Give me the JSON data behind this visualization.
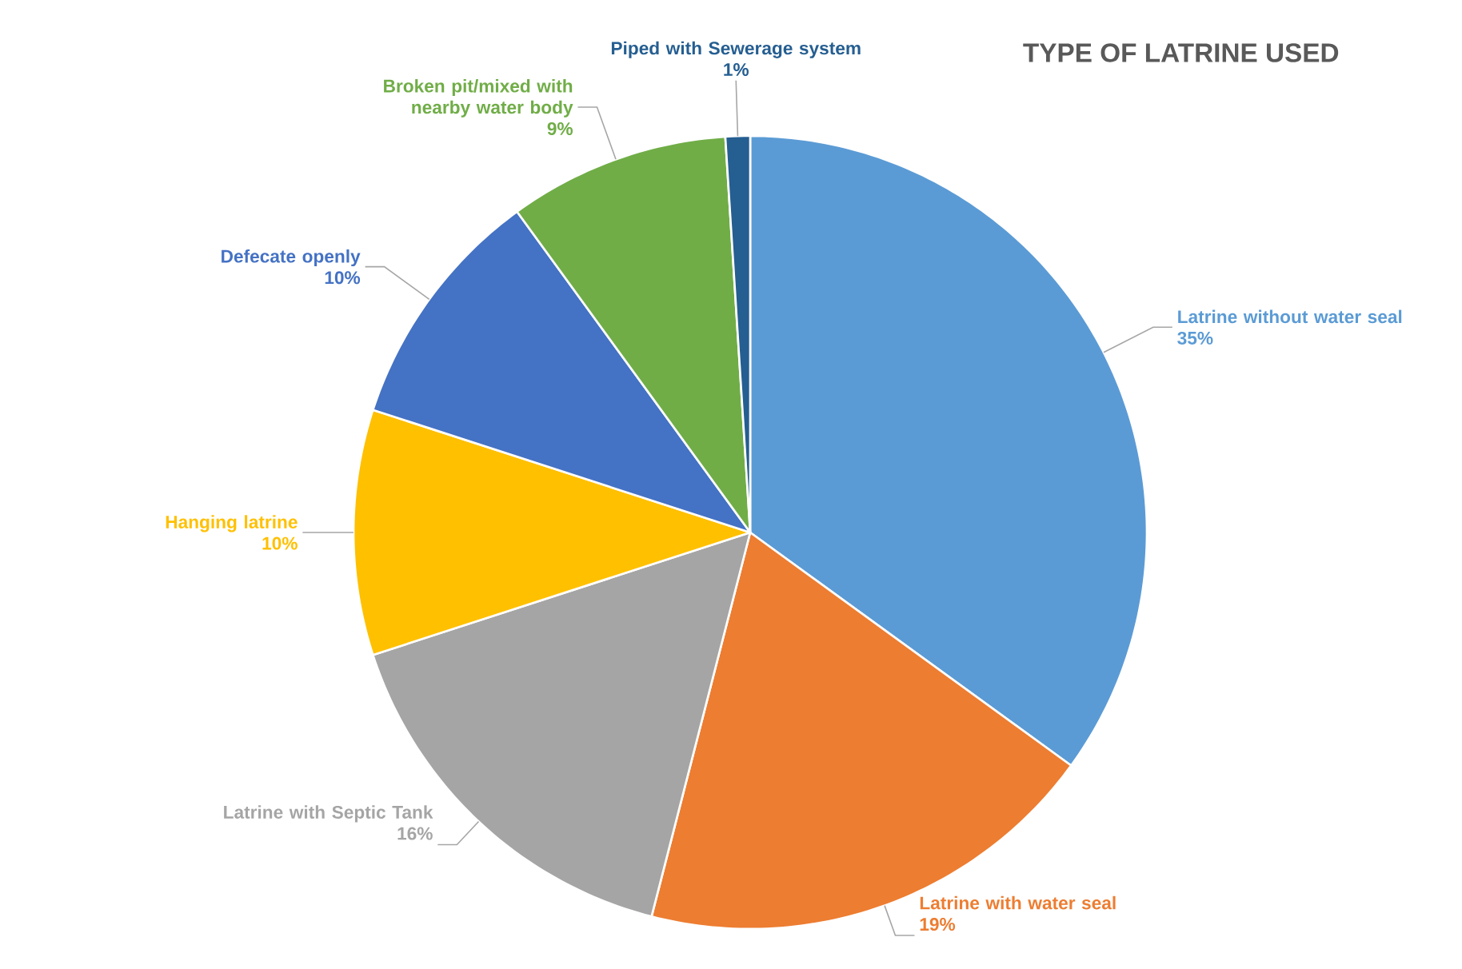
{
  "chart_data": {
    "type": "pie",
    "title": "TYPE OF LATRINE USED",
    "categories": [
      "Latrine without water seal",
      "Latrine with water seal",
      "Latrine with Septic Tank",
      "Hanging latrine",
      "Defecate openly",
      "Broken pit/mixed with nearby water body",
      "Piped with Sewerage system"
    ],
    "values": [
      35,
      19,
      16,
      10,
      10,
      9,
      1
    ],
    "value_labels": [
      "35%",
      "19%",
      "16%",
      "10%",
      "10%",
      "9%",
      "1%"
    ],
    "colors": [
      "#5b9bd5",
      "#ed7d31",
      "#a5a5a5",
      "#ffc000",
      "#4472c4",
      "#70ad47",
      "#255e91"
    ]
  }
}
